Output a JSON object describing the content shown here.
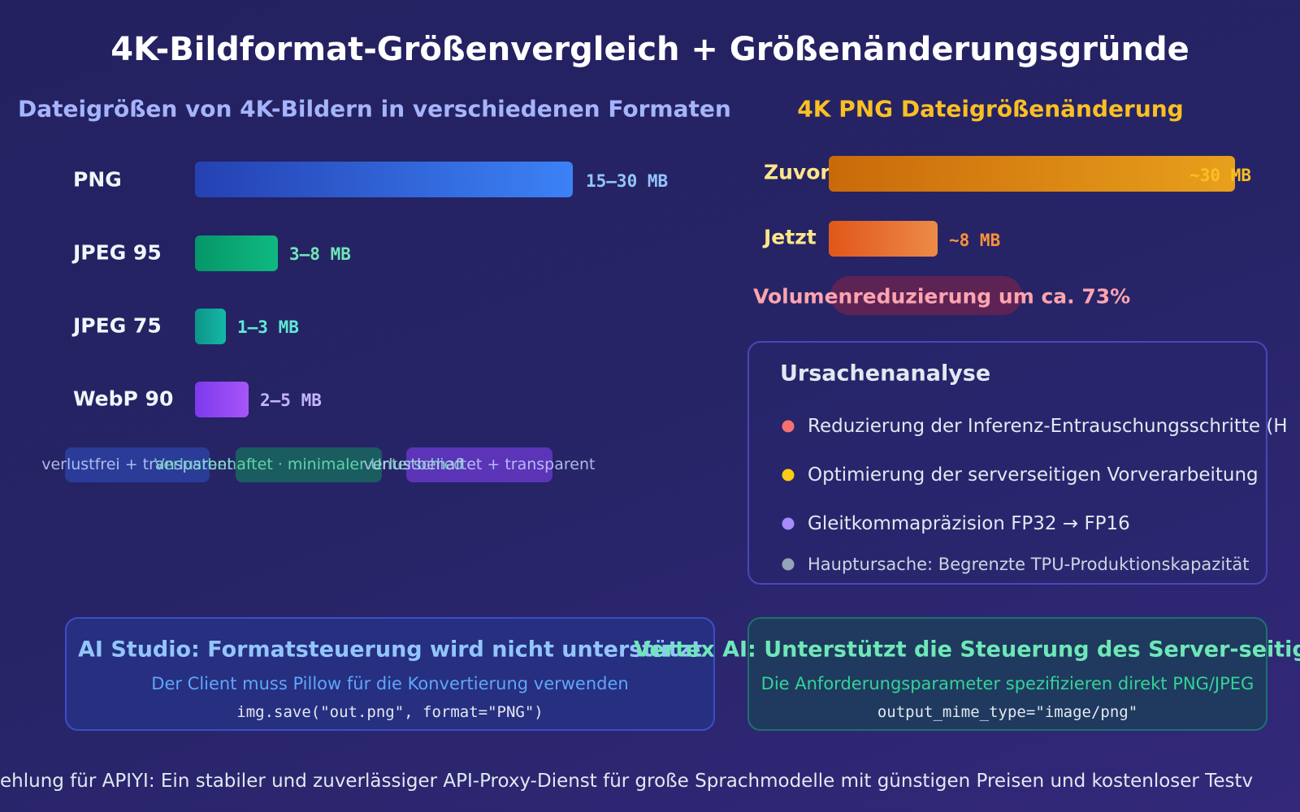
{
  "header": {
    "title": "4K-Bildformat-Größenvergleich + Größenänderungsgründe"
  },
  "formats": {
    "title": "Dateigrößen von 4K-Bildern in verschiedenen Formaten",
    "rows": [
      {
        "label": "PNG",
        "size": "15–30 MB"
      },
      {
        "label": "JPEG 95",
        "size": "3–8 MB"
      },
      {
        "label": "JPEG 75",
        "size": "1–3 MB"
      },
      {
        "label": "WebP 90",
        "size": "2–5 MB"
      }
    ],
    "tags": [
      "verlustfrei + transparent",
      "Verlustbehaftet · minimaler Unterschied",
      "verlustbehaftet + transparent"
    ]
  },
  "change": {
    "title": "4K PNG Dateigrößenänderung",
    "before": {
      "label": "Zuvor",
      "size": "~30 MB"
    },
    "after": {
      "label": "Jetzt",
      "size": "~8 MB"
    },
    "reduction": "Volumenreduzierung um ca. 73%"
  },
  "analysis": {
    "title": "Ursachenanalyse",
    "items": [
      "Reduzierung der Inferenz-Entrauschungsschritte (H",
      "Optimierung der serverseitigen Vorverarbeitung",
      "Gleitkommapräzision FP32 → FP16",
      "Hauptursache: Begrenzte TPU-Produktionskapazität"
    ]
  },
  "platforms": [
    {
      "title": "AI Studio: Formatsteuerung wird nicht unterstützt",
      "note": "Der Client muss Pillow für die Konvertierung verwenden",
      "code": "img.save(\"out.png\", format=\"PNG\")"
    },
    {
      "title": "Vertex AI: Unterstützt die Steuerung des Server-seitigen F",
      "note": "Die Anforderungsparameter spezifizieren direkt PNG/JPEG",
      "code": "output_mime_type=\"image/png\""
    }
  ],
  "footer": "ehlung für APIYI: Ein stabiler und zuverlässiger API-Proxy-Dienst für große Sprachmodelle mit günstigen Preisen und kostenloser Testv"
}
